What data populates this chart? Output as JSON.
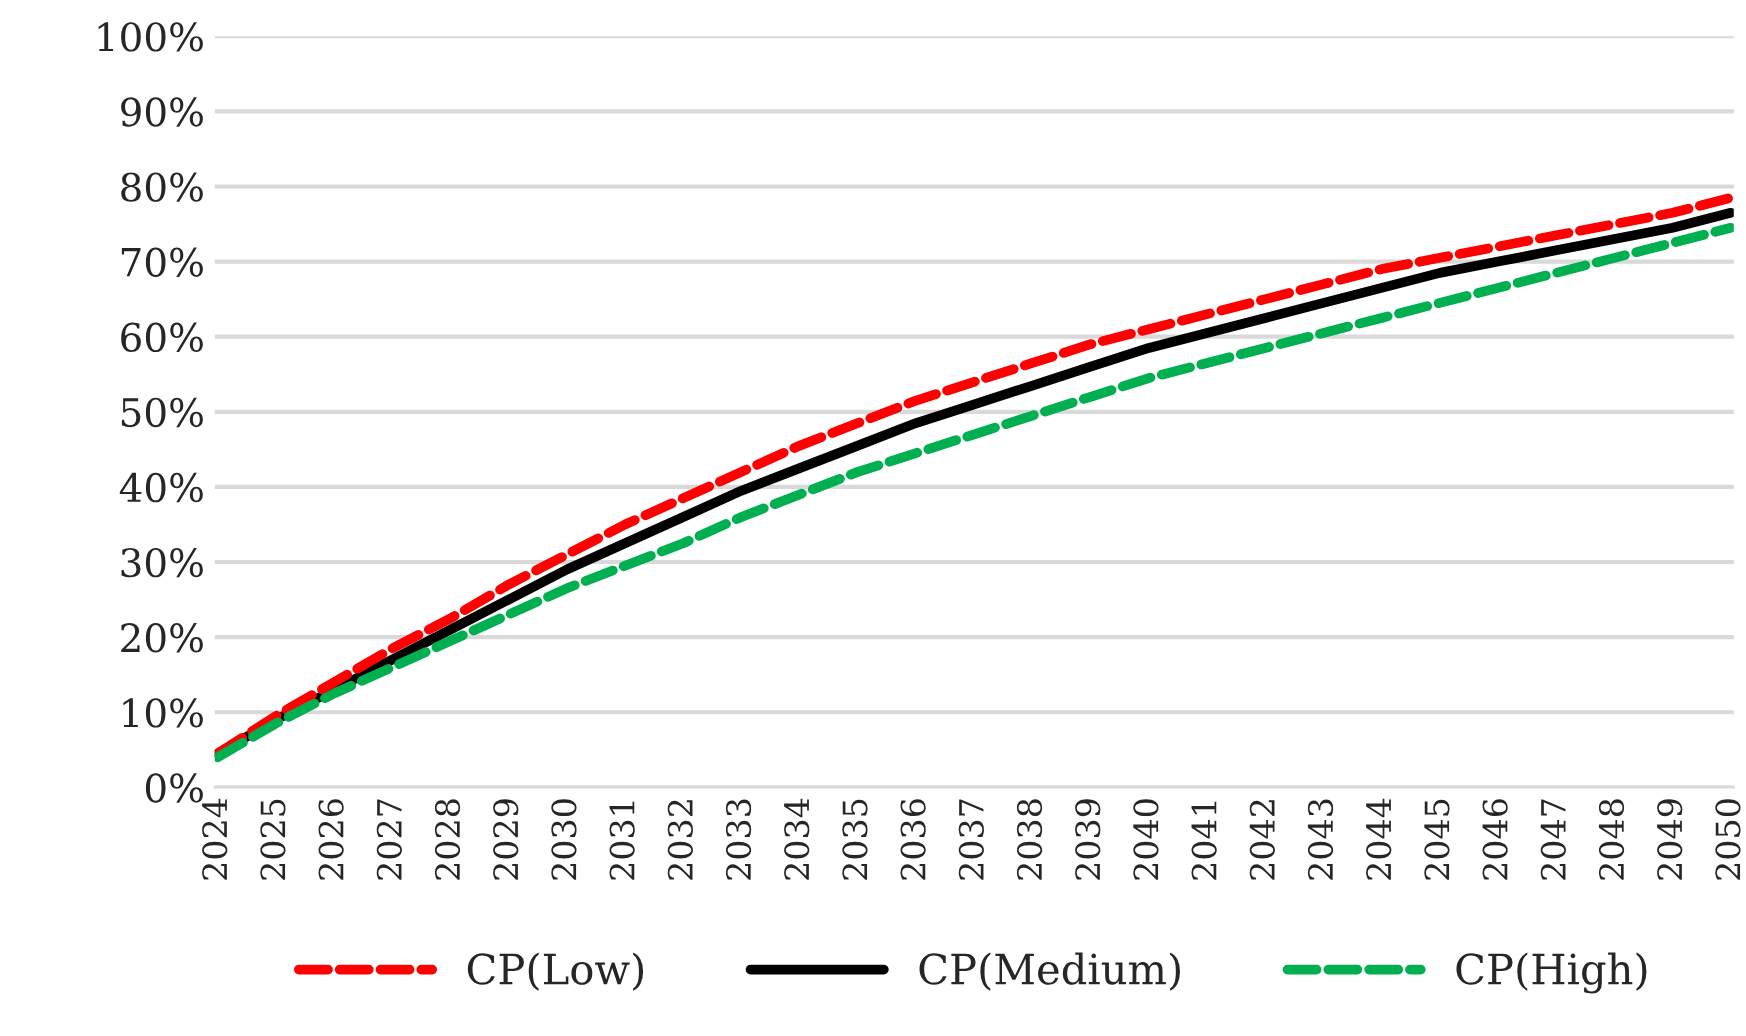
{
  "chart_data": {
    "type": "line",
    "categories": [
      "2024",
      "2025",
      "2026",
      "2027",
      "2028",
      "2029",
      "2030",
      "2031",
      "2032",
      "2033",
      "2034",
      "2035",
      "2036",
      "2037",
      "2038",
      "2039",
      "2040",
      "2041",
      "2042",
      "2043",
      "2044",
      "2045",
      "2046",
      "2047",
      "2048",
      "2049",
      "2050"
    ],
    "series": [
      {
        "name": "CP(Low)",
        "color": "#ff0000",
        "line_style": "dashed",
        "values": [
          4.5,
          9.5,
          14,
          18.5,
          22.5,
          27,
          31,
          35,
          38.5,
          42,
          45.5,
          48.5,
          51.5,
          54,
          56.5,
          59,
          61,
          63,
          65,
          67,
          69,
          70.5,
          72,
          73.5,
          75,
          76.5,
          78.5
        ]
      },
      {
        "name": "CP(Medium)",
        "color": "#000000",
        "line_style": "solid",
        "values": [
          4.5,
          9,
          13,
          17,
          21,
          25,
          29,
          32.5,
          36,
          39.5,
          42.5,
          45.5,
          48.5,
          51,
          53.5,
          56,
          58.5,
          60.5,
          62.5,
          64.5,
          66.5,
          68.5,
          70,
          71.5,
          73,
          74.5,
          76.5
        ]
      },
      {
        "name": "CP(High)",
        "color": "#00b050",
        "line_style": "dashed",
        "values": [
          4,
          8.5,
          12.5,
          16,
          19.5,
          23,
          26.5,
          29.5,
          32.5,
          36,
          39,
          42,
          44.5,
          47,
          49.5,
          52,
          54.5,
          56.5,
          58.5,
          60.5,
          62.5,
          64.5,
          66.5,
          68.5,
          70.5,
          72.5,
          74.5
        ]
      }
    ],
    "ylim": [
      0,
      100
    ],
    "yticks": [
      {
        "value": 0,
        "label": "0%"
      },
      {
        "value": 10,
        "label": "10%"
      },
      {
        "value": 20,
        "label": "20%"
      },
      {
        "value": 30,
        "label": "30%"
      },
      {
        "value": 40,
        "label": "40%"
      },
      {
        "value": 50,
        "label": "50%"
      },
      {
        "value": 60,
        "label": "60%"
      },
      {
        "value": 70,
        "label": "70%"
      },
      {
        "value": 80,
        "label": "80%"
      },
      {
        "value": 90,
        "label": "90%"
      },
      {
        "value": 100,
        "label": "100%"
      }
    ],
    "grid": "y",
    "legend": "bottom",
    "marker": "none"
  }
}
